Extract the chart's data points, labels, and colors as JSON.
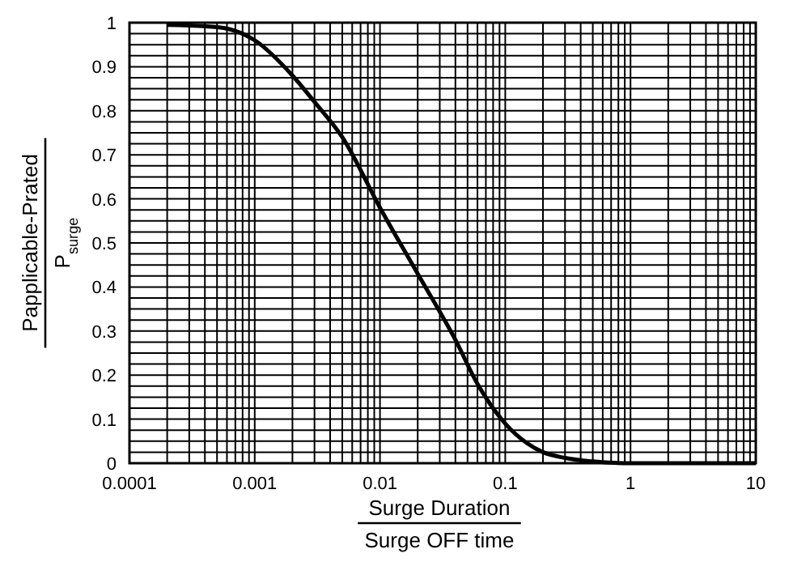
{
  "chart_data": {
    "type": "line",
    "xlabel": "Surge Duration\nSurge OFF time",
    "ylabel": "Papplicable-Prated\nP$_{surge}$",
    "log": "x",
    "grid": true,
    "marker": "none",
    "line_style": "solid",
    "xlim": [
      0.0001,
      10
    ],
    "ylim": [
      0,
      1
    ],
    "xticks": [
      0.0001,
      {
        "value": 0.0002,
        "label": null
      },
      {
        "value": 0.0003,
        "label": null
      },
      {
        "value": 0.0004,
        "label": null
      },
      {
        "value": 0.0005,
        "label": null
      },
      {
        "value": 0.0006,
        "label": null
      },
      {
        "value": 0.0007,
        "label": null
      },
      {
        "value": 0.0008,
        "label": null
      },
      {
        "value": 0.0009,
        "label": null
      },
      0.001,
      {
        "value": 0.002,
        "label": null
      },
      {
        "value": 0.003,
        "label": null
      },
      {
        "value": 0.004,
        "label": null
      },
      {
        "value": 0.005,
        "label": null
      },
      {
        "value": 0.006,
        "label": null
      },
      {
        "value": 0.007,
        "label": null
      },
      {
        "value": 0.008,
        "label": null
      },
      {
        "value": 0.009,
        "label": null
      },
      0.01,
      {
        "value": 0.02,
        "label": null
      },
      {
        "value": 0.03,
        "label": null
      },
      {
        "value": 0.04,
        "label": null
      },
      {
        "value": 0.05,
        "label": null
      },
      {
        "value": 0.06,
        "label": null
      },
      {
        "value": 0.07,
        "label": null
      },
      {
        "value": 0.08,
        "label": null
      },
      {
        "value": 0.09,
        "label": null
      },
      0.1,
      {
        "value": 0.2,
        "label": null
      },
      {
        "value": 0.3,
        "label": null
      },
      {
        "value": 0.4,
        "label": null
      },
      {
        "value": 0.5,
        "label": null
      },
      {
        "value": 0.6,
        "label": null
      },
      {
        "value": 0.7,
        "label": null
      },
      {
        "value": 0.8,
        "label": null
      },
      {
        "value": 0.9,
        "label": null
      },
      1,
      {
        "value": 2,
        "label": null
      },
      {
        "value": 3,
        "label": null
      },
      {
        "value": 4,
        "label": null
      },
      {
        "value": 5,
        "label": null
      },
      {
        "value": 6,
        "label": null
      },
      {
        "value": 7,
        "label": null
      },
      {
        "value": 8,
        "label": null
      },
      {
        "value": 9,
        "label": null
      },
      10
    ],
    "yticks": [
      0,
      {
        "value": 0.025,
        "label": null
      },
      {
        "value": 0.05,
        "label": null
      },
      {
        "value": 0.075,
        "label": null
      },
      0.1,
      {
        "value": 0.125,
        "label": null
      },
      {
        "value": 0.15,
        "label": null
      },
      {
        "value": 0.175,
        "label": null
      },
      0.2,
      {
        "value": 0.225,
        "label": null
      },
      {
        "value": 0.25,
        "label": null
      },
      {
        "value": 0.275,
        "label": null
      },
      0.3,
      {
        "value": 0.325,
        "label": null
      },
      {
        "value": 0.35,
        "label": null
      },
      {
        "value": 0.375,
        "label": null
      },
      0.4,
      {
        "value": 0.425,
        "label": null
      },
      {
        "value": 0.45,
        "label": null
      },
      {
        "value": 0.475,
        "label": null
      },
      0.5,
      {
        "value": 0.525,
        "label": null
      },
      {
        "value": 0.55,
        "label": null
      },
      {
        "value": 0.575,
        "label": null
      },
      0.6,
      {
        "value": 0.625,
        "label": null
      },
      {
        "value": 0.65,
        "label": null
      },
      {
        "value": 0.675,
        "label": null
      },
      0.7,
      {
        "value": 0.725,
        "label": null
      },
      {
        "value": 0.75,
        "label": null
      },
      {
        "value": 0.775,
        "label": null
      },
      0.8,
      {
        "value": 0.825,
        "label": null
      },
      {
        "value": 0.85,
        "label": null
      },
      {
        "value": 0.875,
        "label": null
      },
      0.9,
      {
        "value": 0.925,
        "label": null
      },
      {
        "value": 0.95,
        "label": null
      },
      {
        "value": 0.975,
        "label": null
      },
      1
    ],
    "series": [
      {
        "color": "#000000",
        "x": [
          0.0002,
          0.0005,
          0.0008,
          0.001,
          0.002,
          0.003,
          0.005,
          0.01,
          0.02,
          0.04,
          0.06,
          0.1,
          0.15,
          0.2,
          0.3,
          0.5,
          1,
          10
        ],
        "values": [
          0.995,
          0.99,
          0.975,
          0.96,
          0.88,
          0.82,
          0.74,
          0.58,
          0.43,
          0.28,
          0.18,
          0.09,
          0.045,
          0.025,
          0.012,
          0.004,
          0,
          0
        ]
      }
    ]
  }
}
